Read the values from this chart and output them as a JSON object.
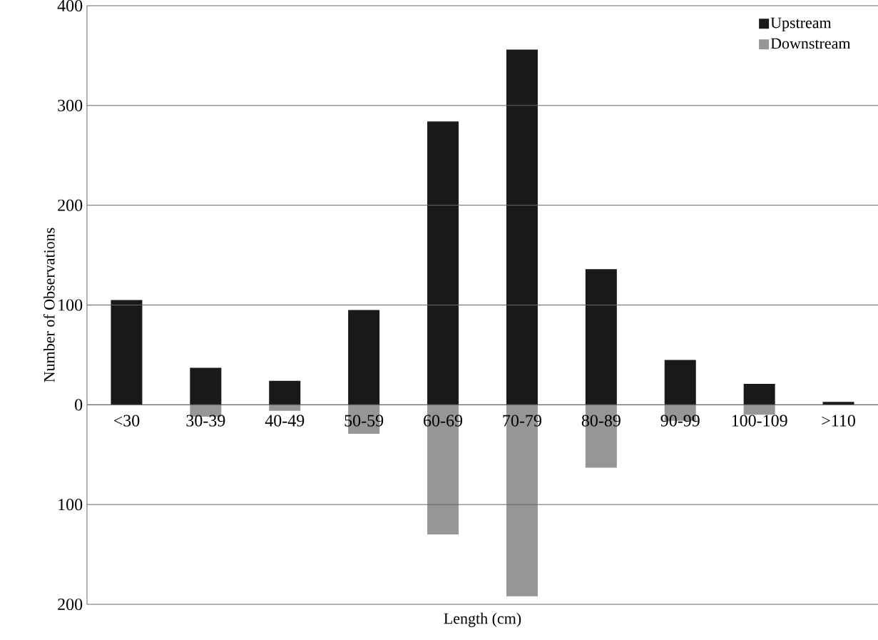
{
  "chart_data": {
    "type": "bar",
    "xlabel": "Length (cm)",
    "ylabel": "Number of Observations",
    "categories": [
      "<30",
      "30-39",
      "40-49",
      "50-59",
      "60-69",
      "70-79",
      "80-89",
      "90-99",
      "100-109",
      ">110"
    ],
    "series": [
      {
        "name": "Upstream",
        "color": "#191919",
        "values": [
          105,
          37,
          24,
          95,
          284,
          356,
          136,
          45,
          21,
          3
        ]
      },
      {
        "name": "Downstream",
        "color": "#969696",
        "values": [
          0,
          -12,
          -6,
          -29,
          -130,
          -192,
          -63,
          -16,
          -10,
          0
        ]
      }
    ],
    "ylim": [
      -200,
      400
    ],
    "yticks": [
      {
        "value": -200,
        "label": "200"
      },
      {
        "value": -100,
        "label": "100"
      },
      0,
      100,
      200,
      300,
      400
    ],
    "stacked": true,
    "grid": "y",
    "legend": "top right"
  }
}
